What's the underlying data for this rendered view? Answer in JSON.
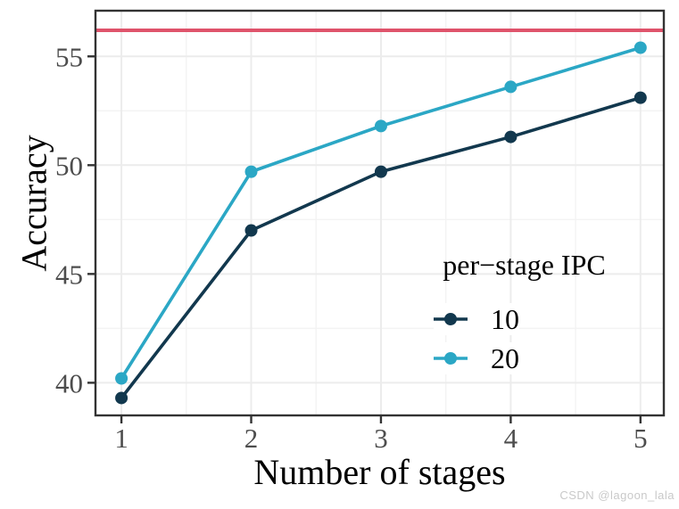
{
  "watermark": "CSDN @lagoon_lala",
  "chart_data": {
    "type": "line",
    "title": "",
    "xlabel": "Number of stages",
    "ylabel": "Accuracy",
    "x": [
      1,
      2,
      3,
      4,
      5
    ],
    "x_ticks": [
      1,
      2,
      3,
      4,
      5
    ],
    "y_ticks": [
      40,
      45,
      50,
      55
    ],
    "xlim": [
      0.8,
      5.18
    ],
    "ylim": [
      38.5,
      57.1
    ],
    "grid": "major+minor",
    "legend": {
      "title": "per−stage IPC",
      "position": "inside-bottom-right"
    },
    "hline": {
      "value": 56.2,
      "color": "#df536b"
    },
    "series": [
      {
        "name": "10",
        "color": "#12384e",
        "values": [
          39.3,
          47.0,
          49.7,
          51.3,
          53.1
        ]
      },
      {
        "name": "20",
        "color": "#2ba7c5",
        "values": [
          40.2,
          49.7,
          51.8,
          53.6,
          55.4
        ]
      }
    ]
  }
}
